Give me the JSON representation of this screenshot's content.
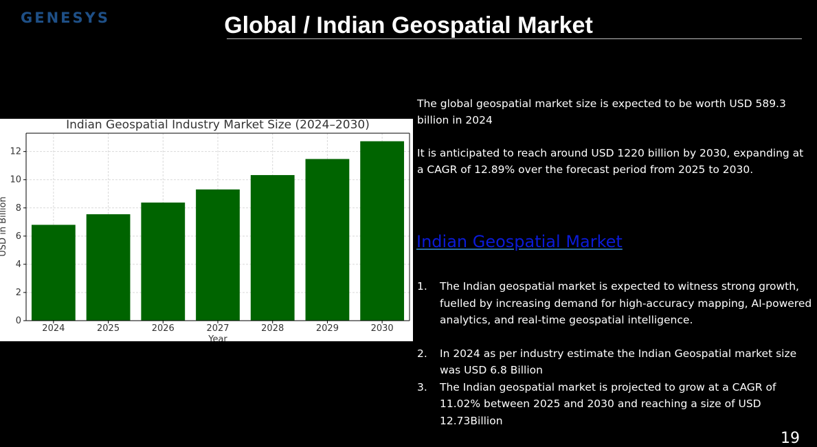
{
  "header": {
    "logo_text": "GENESYS",
    "title": "Global / Indian Geospatial Market"
  },
  "chart_data": {
    "type": "bar",
    "title": "Indian Geospatial Industry Market Size (2024–2030)",
    "xlabel": "Year",
    "ylabel": "USD in Billion",
    "categories": [
      "2024",
      "2025",
      "2026",
      "2027",
      "2028",
      "2029",
      "2030"
    ],
    "values": [
      6.8,
      7.55,
      8.38,
      9.31,
      10.33,
      11.47,
      12.73
    ],
    "ylim": [
      0,
      13.3
    ],
    "yticks": [
      0,
      2,
      4,
      6,
      8,
      10,
      12
    ],
    "grid": true,
    "bar_color": "#006400"
  },
  "global_text": {
    "para1": "The global geospatial market size is expected to be worth USD 589.3 billion in 2024",
    "para2": "It is anticipated to reach around USD 1220 billion by 2030, expanding at a CAGR of 12.89% over the forecast period from 2025 to 2030."
  },
  "section_heading": "Indian Geospatial Market",
  "list": [
    {
      "num": "1.",
      "text": "The Indian geospatial market is expected to witness strong growth, fuelled by increasing demand for high-accuracy mapping, AI-powered analytics, and real-time geospatial intelligence."
    },
    {
      "num": "2.",
      "text": "In 2024 as per industry estimate the Indian Geospatial market size was USD 6.8 Billion"
    },
    {
      "num": "3.",
      "text": "The Indian geospatial market is projected to grow at a CAGR of 11.02% between 2025 and 2030 and reaching a size of USD 12.73Billion"
    }
  ],
  "page_number": "19"
}
